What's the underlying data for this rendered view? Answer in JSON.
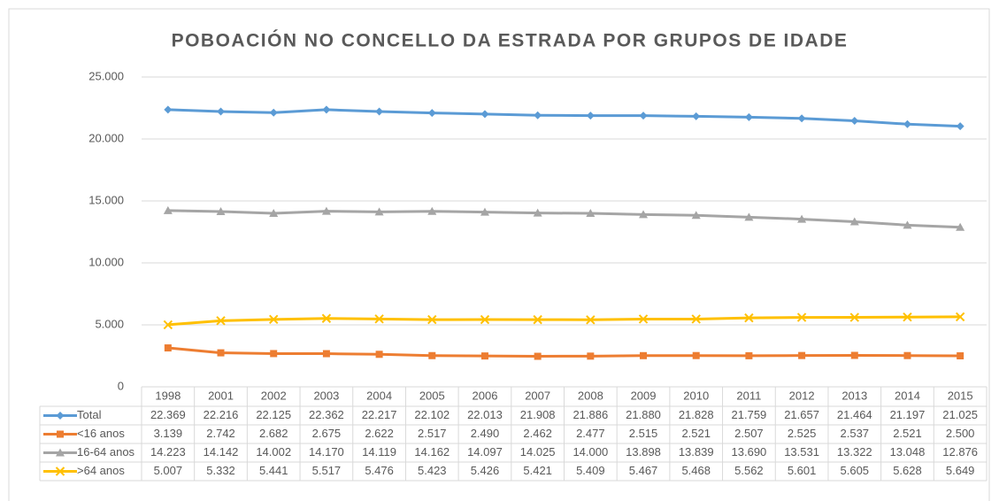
{
  "chart_data": {
    "type": "line",
    "title": "POBOACIÓN NO CONCELLO DA ESTRADA POR GRUPOS DE IDADE",
    "categories": [
      "1998",
      "2001",
      "2002",
      "2003",
      "2004",
      "2005",
      "2006",
      "2007",
      "2008",
      "2009",
      "2010",
      "2011",
      "2012",
      "2013",
      "2014",
      "2015"
    ],
    "ylim": [
      0,
      25000
    ],
    "yticks": [
      0,
      {
        "value": 5000,
        "label": "5.000"
      },
      {
        "value": 10000,
        "label": "10.000"
      },
      {
        "value": 15000,
        "label": "15.000"
      },
      {
        "value": 20000,
        "label": "20.000"
      },
      {
        "value": 25000,
        "label": "25.000"
      }
    ],
    "grid": true,
    "series": [
      {
        "name": "Total",
        "color": "#5b9bd5",
        "marker": "diamond",
        "values": [
          22369,
          22216,
          22125,
          22362,
          22217,
          22102,
          22013,
          21908,
          21886,
          21880,
          21828,
          21759,
          21657,
          21464,
          21197,
          21025
        ],
        "value_labels": [
          "22.369",
          "22.216",
          "22.125",
          "22.362",
          "22.217",
          "22.102",
          "22.013",
          "21.908",
          "21.886",
          "21.880",
          "21.828",
          "21.759",
          "21.657",
          "21.464",
          "21.197",
          "21.025"
        ]
      },
      {
        "name": "<16 anos",
        "color": "#ed7d31",
        "marker": "square",
        "values": [
          3139,
          2742,
          2682,
          2675,
          2622,
          2517,
          2490,
          2462,
          2477,
          2515,
          2521,
          2507,
          2525,
          2537,
          2521,
          2500
        ],
        "value_labels": [
          "3.139",
          "2.742",
          "2.682",
          "2.675",
          "2.622",
          "2.517",
          "2.490",
          "2.462",
          "2.477",
          "2.515",
          "2.521",
          "2.507",
          "2.525",
          "2.537",
          "2.521",
          "2.500"
        ]
      },
      {
        "name": "16-64 anos",
        "color": "#a5a5a5",
        "marker": "triangle",
        "values": [
          14223,
          14142,
          14002,
          14170,
          14119,
          14162,
          14097,
          14025,
          14000,
          13898,
          13839,
          13690,
          13531,
          13322,
          13048,
          12876
        ],
        "value_labels": [
          "14.223",
          "14.142",
          "14.002",
          "14.170",
          "14.119",
          "14.162",
          "14.097",
          "14.025",
          "14.000",
          "13.898",
          "13.839",
          "13.690",
          "13.531",
          "13.322",
          "13.048",
          "12.876"
        ]
      },
      {
        "name": ">64 anos",
        "color": "#ffc000",
        "marker": "x",
        "values": [
          5007,
          5332,
          5441,
          5517,
          5476,
          5423,
          5426,
          5421,
          5409,
          5467,
          5468,
          5562,
          5601,
          5605,
          5628,
          5649
        ],
        "value_labels": [
          "5.007",
          "5.332",
          "5.441",
          "5.517",
          "5.476",
          "5.423",
          "5.426",
          "5.421",
          "5.409",
          "5.467",
          "5.468",
          "5.562",
          "5.601",
          "5.605",
          "5.628",
          "5.649"
        ]
      }
    ]
  }
}
